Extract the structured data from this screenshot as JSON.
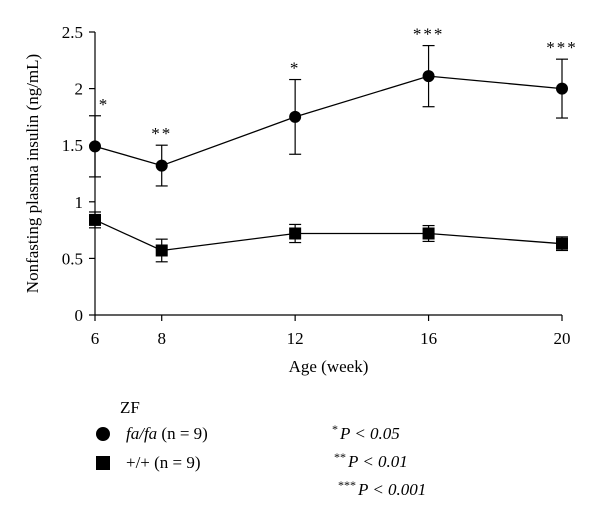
{
  "chart_data": {
    "type": "line",
    "ylabel": "Nonfasting plasma insulin (ng/mL)",
    "xlabel": "Age (week)",
    "x": [
      6,
      8,
      12,
      16,
      20
    ],
    "xticks": [
      "6",
      "8",
      "12",
      "16",
      "20"
    ],
    "yticks": [
      "0",
      "0.5",
      "1",
      "1.5",
      "2",
      "2.5"
    ],
    "xlim": [
      6,
      20
    ],
    "ylim": [
      0,
      2.5
    ],
    "grid": false,
    "series": [
      {
        "name": "fa/fa (n = 9)",
        "marker": "circle",
        "values": [
          1.49,
          1.32,
          1.75,
          2.11,
          2.0
        ],
        "errors": [
          0.27,
          0.18,
          0.33,
          0.27,
          0.26
        ],
        "annotations": [
          "*",
          "**",
          "*",
          "***",
          "***"
        ]
      },
      {
        "name": "+/+ (n = 9)",
        "marker": "square",
        "values": [
          0.84,
          0.57,
          0.72,
          0.72,
          0.63
        ],
        "errors": [
          0.07,
          0.1,
          0.08,
          0.07,
          0.06
        ]
      }
    ]
  },
  "legend": {
    "title": "ZF",
    "items": [
      {
        "italic": "fa/fa",
        "rest": " (n = 9)"
      },
      {
        "italic": "",
        "rest": "+/+ (n = 9)"
      }
    ]
  },
  "significance": [
    {
      "stars": "*",
      "text": "P < 0.05"
    },
    {
      "stars": "**",
      "text": "P < 0.01"
    },
    {
      "stars": "***",
      "text": "P < 0.001"
    }
  ]
}
